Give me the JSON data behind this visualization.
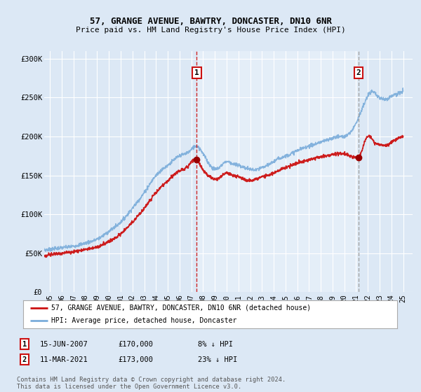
{
  "title": "57, GRANGE AVENUE, BAWTRY, DONCASTER, DN10 6NR",
  "subtitle": "Price paid vs. HM Land Registry's House Price Index (HPI)",
  "bg_color": "#dce8f5",
  "plot_bg_color": "#dce8f5",
  "highlight_color": "#e4eef8",
  "legend_line1": "57, GRANGE AVENUE, BAWTRY, DONCASTER, DN10 6NR (detached house)",
  "legend_line2": "HPI: Average price, detached house, Doncaster",
  "red_line_color": "#cc1111",
  "blue_line_color": "#7aacda",
  "marker1_date": 2007.46,
  "marker1_value": 170000,
  "marker1_label": "1",
  "marker2_date": 2021.19,
  "marker2_value": 173000,
  "marker2_label": "2",
  "info1_box": "1",
  "info1_date": "15-JUN-2007",
  "info1_price": "£170,000",
  "info1_hpi": "8% ↓ HPI",
  "info2_box": "2",
  "info2_date": "11-MAR-2021",
  "info2_price": "£173,000",
  "info2_hpi": "23% ↓ HPI",
  "ylim": [
    0,
    310000
  ],
  "xlim_start": 1994.5,
  "xlim_end": 2025.8,
  "footer": "Contains HM Land Registry data © Crown copyright and database right 2024.\nThis data is licensed under the Open Government Licence v3.0.",
  "ytick_labels": [
    "£0",
    "£50K",
    "£100K",
    "£150K",
    "£200K",
    "£250K",
    "£300K"
  ],
  "ytick_values": [
    0,
    50000,
    100000,
    150000,
    200000,
    250000,
    300000
  ],
  "xtick_values": [
    1995,
    1996,
    1997,
    1998,
    1999,
    2000,
    2001,
    2002,
    2003,
    2004,
    2005,
    2006,
    2007,
    2008,
    2009,
    2010,
    2011,
    2012,
    2013,
    2014,
    2015,
    2016,
    2017,
    2018,
    2019,
    2020,
    2021,
    2022,
    2023,
    2024,
    2025
  ],
  "hpi_anchors": [
    [
      1994.5,
      54000
    ],
    [
      1995,
      55000
    ],
    [
      1996,
      57000
    ],
    [
      1997,
      59000
    ],
    [
      1998,
      63000
    ],
    [
      1999,
      68000
    ],
    [
      2000,
      78000
    ],
    [
      2001,
      90000
    ],
    [
      2002,
      108000
    ],
    [
      2003,
      128000
    ],
    [
      2004,
      150000
    ],
    [
      2005,
      163000
    ],
    [
      2006,
      175000
    ],
    [
      2007.0,
      183000
    ],
    [
      2007.4,
      188000
    ],
    [
      2007.7,
      185000
    ],
    [
      2008.0,
      178000
    ],
    [
      2008.5,
      165000
    ],
    [
      2009.0,
      158000
    ],
    [
      2009.5,
      162000
    ],
    [
      2010.0,
      168000
    ],
    [
      2010.5,
      165000
    ],
    [
      2011.0,
      163000
    ],
    [
      2011.5,
      160000
    ],
    [
      2012.0,
      158000
    ],
    [
      2012.5,
      157000
    ],
    [
      2013.0,
      160000
    ],
    [
      2013.5,
      163000
    ],
    [
      2014.0,
      168000
    ],
    [
      2014.5,
      172000
    ],
    [
      2015.0,
      175000
    ],
    [
      2015.5,
      178000
    ],
    [
      2016.0,
      182000
    ],
    [
      2016.5,
      185000
    ],
    [
      2017.0,
      188000
    ],
    [
      2017.5,
      190000
    ],
    [
      2018.0,
      193000
    ],
    [
      2018.5,
      195000
    ],
    [
      2019.0,
      198000
    ],
    [
      2019.5,
      200000
    ],
    [
      2020.0,
      200000
    ],
    [
      2020.5,
      205000
    ],
    [
      2021.0,
      218000
    ],
    [
      2021.5,
      235000
    ],
    [
      2022.0,
      252000
    ],
    [
      2022.3,
      258000
    ],
    [
      2022.6,
      255000
    ],
    [
      2023.0,
      250000
    ],
    [
      2023.5,
      248000
    ],
    [
      2024.0,
      252000
    ],
    [
      2024.5,
      255000
    ],
    [
      2025.0,
      258000
    ]
  ],
  "red_anchors": [
    [
      1994.5,
      46000
    ],
    [
      1995,
      48000
    ],
    [
      1996,
      50000
    ],
    [
      1997,
      52000
    ],
    [
      1998,
      55000
    ],
    [
      1999,
      58000
    ],
    [
      2000,
      65000
    ],
    [
      2001,
      75000
    ],
    [
      2002,
      90000
    ],
    [
      2003,
      108000
    ],
    [
      2004,
      128000
    ],
    [
      2005,
      143000
    ],
    [
      2006,
      156000
    ],
    [
      2006.8,
      163000
    ],
    [
      2007.0,
      167000
    ],
    [
      2007.46,
      170000
    ],
    [
      2007.8,
      162000
    ],
    [
      2008.2,
      153000
    ],
    [
      2008.6,
      148000
    ],
    [
      2009.0,
      145000
    ],
    [
      2009.5,
      148000
    ],
    [
      2010.0,
      153000
    ],
    [
      2010.5,
      150000
    ],
    [
      2011.0,
      148000
    ],
    [
      2011.5,
      145000
    ],
    [
      2012.0,
      143000
    ],
    [
      2012.5,
      145000
    ],
    [
      2013.0,
      148000
    ],
    [
      2013.5,
      150000
    ],
    [
      2014.0,
      153000
    ],
    [
      2014.5,
      157000
    ],
    [
      2015.0,
      160000
    ],
    [
      2015.5,
      163000
    ],
    [
      2016.0,
      166000
    ],
    [
      2016.5,
      168000
    ],
    [
      2017.0,
      170000
    ],
    [
      2017.5,
      172000
    ],
    [
      2018.0,
      174000
    ],
    [
      2018.5,
      175000
    ],
    [
      2019.0,
      177000
    ],
    [
      2019.5,
      178000
    ],
    [
      2020.0,
      178000
    ],
    [
      2020.5,
      175000
    ],
    [
      2021.0,
      173000
    ],
    [
      2021.19,
      173000
    ],
    [
      2021.4,
      178000
    ],
    [
      2021.7,
      192000
    ],
    [
      2022.0,
      200000
    ],
    [
      2022.3,
      198000
    ],
    [
      2022.6,
      192000
    ],
    [
      2023.0,
      190000
    ],
    [
      2023.5,
      188000
    ],
    [
      2024.0,
      193000
    ],
    [
      2024.5,
      197000
    ],
    [
      2025.0,
      200000
    ]
  ]
}
